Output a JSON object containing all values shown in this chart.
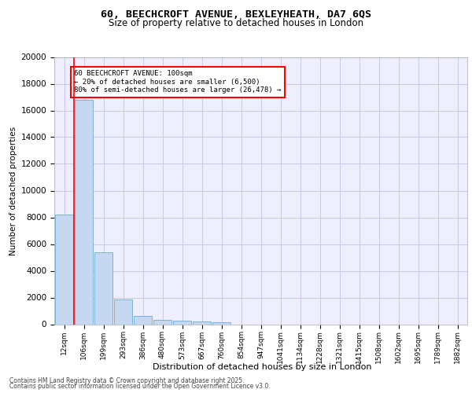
{
  "title_line1": "60, BEECHCROFT AVENUE, BEXLEYHEATH, DA7 6QS",
  "title_line2": "Size of property relative to detached houses in London",
  "xlabel": "Distribution of detached houses by size in London",
  "ylabel": "Number of detached properties",
  "categories": [
    "12sqm",
    "106sqm",
    "199sqm",
    "293sqm",
    "386sqm",
    "480sqm",
    "573sqm",
    "667sqm",
    "760sqm",
    "854sqm",
    "947sqm",
    "1041sqm",
    "1134sqm",
    "1228sqm",
    "1321sqm",
    "1415sqm",
    "1508sqm",
    "1602sqm",
    "1695sqm",
    "1789sqm",
    "1882sqm"
  ],
  "values": [
    8200,
    16800,
    5400,
    1850,
    620,
    340,
    250,
    200,
    150,
    0,
    0,
    0,
    0,
    0,
    0,
    0,
    0,
    0,
    0,
    0,
    0
  ],
  "bar_color": "#c5d8f0",
  "bar_edge_color": "#6aaad4",
  "grid_color": "#c8c8e8",
  "background_color": "#eeeeff",
  "annotation_text": "60 BEECHCROFT AVENUE: 100sqm\n← 20% of detached houses are smaller (6,500)\n80% of semi-detached houses are larger (26,478) →",
  "footer_line1": "Contains HM Land Registry data © Crown copyright and database right 2025.",
  "footer_line2": "Contains public sector information licensed under the Open Government Licence v3.0.",
  "ylim": [
    0,
    20000
  ],
  "yticks": [
    0,
    2000,
    4000,
    6000,
    8000,
    10000,
    12000,
    14000,
    16000,
    18000,
    20000
  ]
}
